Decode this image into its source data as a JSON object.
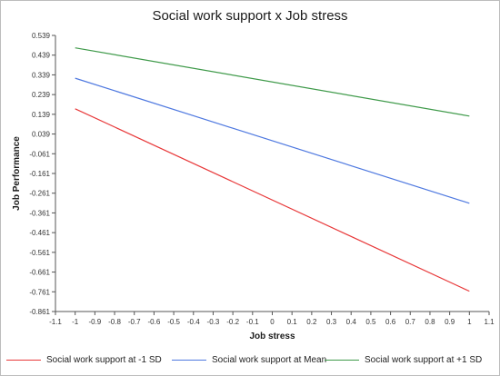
{
  "chart_data": {
    "type": "line",
    "title": "Social work support x Job stress",
    "xlabel": "Job stress",
    "ylabel": "Job Performance",
    "xlim": [
      -1.1,
      1.1
    ],
    "ylim": [
      -0.861,
      0.539
    ],
    "x_ticks": [
      "-1.1",
      "-1",
      "-0.9",
      "-0.8",
      "-0.7",
      "-0.6",
      "-0.5",
      "-0.4",
      "-0.3",
      "-0.2",
      "-0.1",
      "0",
      "0.1",
      "0.2",
      "0.3",
      "0.4",
      "0.5",
      "0.6",
      "0.7",
      "0.8",
      "0.9",
      "1",
      "1.1"
    ],
    "y_ticks": [
      "0.539",
      "0.439",
      "0.339",
      "0.239",
      "0.139",
      "0.039",
      "-0.061",
      "-0.161",
      "-0.261",
      "-0.361",
      "-0.461",
      "-0.561",
      "-0.661",
      "-0.761",
      "-0.861"
    ],
    "grid": false,
    "legend_position": "bottom",
    "series": [
      {
        "name": "Social work support at -1 SD",
        "color": "#e8393a",
        "x": [
          -1,
          1
        ],
        "values": [
          0.167,
          -0.758
        ]
      },
      {
        "name": "Social work support at Mean",
        "color": "#4f79e0",
        "x": [
          -1,
          1
        ],
        "values": [
          0.322,
          -0.312
        ]
      },
      {
        "name": "Social work support at +1 SD",
        "color": "#3f9a4a",
        "x": [
          -1,
          1
        ],
        "values": [
          0.476,
          0.13
        ]
      }
    ]
  }
}
